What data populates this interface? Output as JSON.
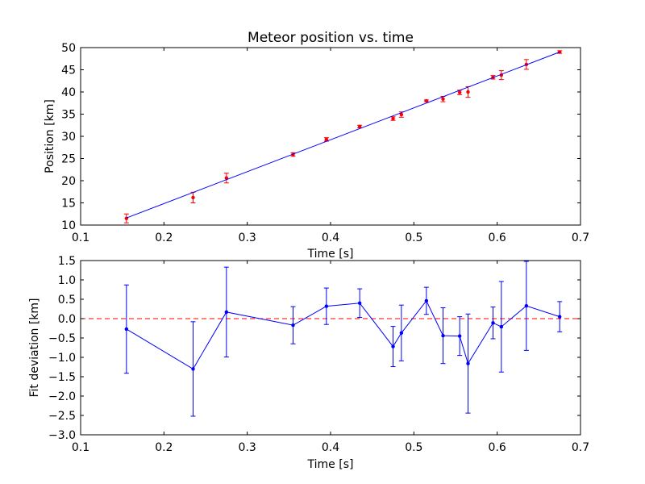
{
  "chart_data": [
    {
      "type": "scatter",
      "title": "Meteor position vs. time",
      "xlabel": "Time [s]",
      "ylabel": "Position [km]",
      "xlim": [
        0.1,
        0.7
      ],
      "ylim": [
        10,
        50
      ],
      "xticks": [
        "0.1",
        "0.2",
        "0.3",
        "0.4",
        "0.5",
        "0.6",
        "0.7"
      ],
      "yticks": [
        "10",
        "15",
        "20",
        "25",
        "30",
        "35",
        "40",
        "45",
        "50"
      ],
      "grid": false,
      "series": [
        {
          "kind": "errorbar",
          "color": "#ff0000",
          "x": [
            0.155,
            0.235,
            0.275,
            0.355,
            0.395,
            0.435,
            0.475,
            0.485,
            0.515,
            0.535,
            0.555,
            0.565,
            0.595,
            0.605,
            0.635,
            0.675
          ],
          "y": [
            11.5,
            16.2,
            20.6,
            25.9,
            29.3,
            32.2,
            34.0,
            34.9,
            38.0,
            38.4,
            39.9,
            40.0,
            43.3,
            43.8,
            46.2,
            49.0
          ],
          "yerr": [
            1.0,
            1.2,
            1.1,
            0.4,
            0.4,
            0.3,
            0.4,
            0.6,
            0.2,
            0.6,
            0.5,
            1.2,
            0.4,
            1.0,
            1.1,
            0.3
          ]
        },
        {
          "kind": "line",
          "color": "#0000ff",
          "x": [
            0.155,
            0.675
          ],
          "y": [
            11.6,
            49.0
          ]
        }
      ]
    },
    {
      "type": "line",
      "title": "",
      "xlabel": "Time [s]",
      "ylabel": "Fit deviation [km]",
      "xlim": [
        0.1,
        0.7
      ],
      "ylim": [
        -3.0,
        1.5
      ],
      "xticks": [
        "0.1",
        "0.2",
        "0.3",
        "0.4",
        "0.5",
        "0.6",
        "0.7"
      ],
      "yticks": [
        "−3.0",
        "−2.5",
        "−2.0",
        "−1.5",
        "−1.0",
        "−0.5",
        "0.0",
        "0.5",
        "1.0",
        "1.5"
      ],
      "grid": false,
      "reference_line": {
        "y": 0.0,
        "color": "#ff0000",
        "style": "dashed"
      },
      "series": [
        {
          "kind": "errorbar-line",
          "color": "#0000ff",
          "x": [
            0.155,
            0.235,
            0.275,
            0.355,
            0.395,
            0.435,
            0.475,
            0.485,
            0.515,
            0.535,
            0.555,
            0.565,
            0.595,
            0.605,
            0.635,
            0.675
          ],
          "y": [
            -0.27,
            -1.3,
            0.17,
            -0.17,
            0.32,
            0.4,
            -0.72,
            -0.37,
            0.46,
            -0.44,
            -0.45,
            -1.16,
            -0.11,
            -0.21,
            0.33,
            0.05
          ],
          "yerr": [
            1.14,
            1.22,
            1.16,
            0.48,
            0.47,
            0.37,
            0.52,
            0.72,
            0.35,
            0.72,
            0.5,
            1.28,
            0.41,
            1.17,
            1.15,
            0.39
          ]
        }
      ]
    }
  ]
}
